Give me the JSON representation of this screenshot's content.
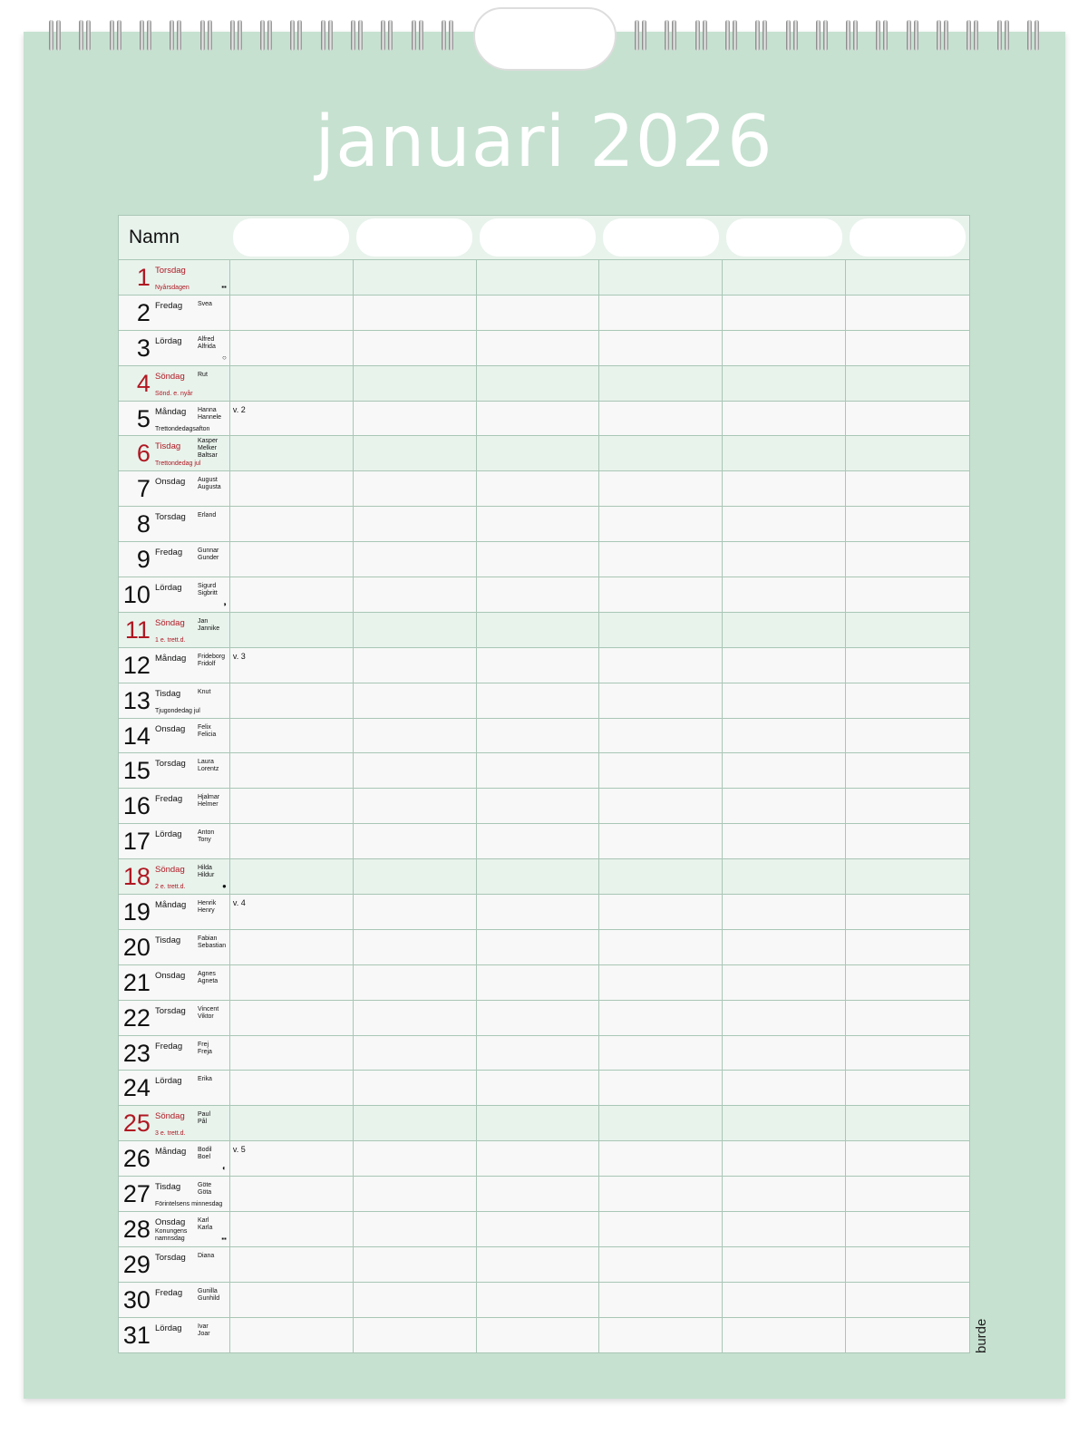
{
  "title": "januari 2026",
  "header": {
    "name_label": "Namn"
  },
  "brand": "burde",
  "colors": {
    "board": "#c6e1d0",
    "holiday_red": "#b01822",
    "sunday_row": "#e8f3ec"
  },
  "days": [
    {
      "n": "1",
      "wd": "Torsdag",
      "names": "",
      "hol": "Nyårsdagen",
      "red": true,
      "mark": "flag-icon"
    },
    {
      "n": "2",
      "wd": "Fredag",
      "names": "Svea"
    },
    {
      "n": "3",
      "wd": "Lördag",
      "names": "Alfred\nAlfrida",
      "mark": "full-moon-icon"
    },
    {
      "n": "4",
      "wd": "Söndag",
      "names": "Rut",
      "hol": "Sönd. e. nyår",
      "sun": true
    },
    {
      "n": "5",
      "wd": "Måndag",
      "names": "Hanna\nHannele",
      "hol": "Trettondedagsafton",
      "week": "v. 2"
    },
    {
      "n": "6",
      "wd": "Tisdag",
      "names": "Kasper\nMelker\nBaltsar",
      "hol": "Trettondedag jul",
      "sun": true
    },
    {
      "n": "7",
      "wd": "Onsdag",
      "names": "August\nAugusta"
    },
    {
      "n": "8",
      "wd": "Torsdag",
      "names": "Erland"
    },
    {
      "n": "9",
      "wd": "Fredag",
      "names": "Gunnar\nGunder"
    },
    {
      "n": "10",
      "wd": "Lördag",
      "names": "Sigurd\nSigbritt",
      "mark": "last-quarter-icon"
    },
    {
      "n": "11",
      "wd": "Söndag",
      "names": "Jan\nJannike",
      "hol": "1 e. trett.d.",
      "sun": true
    },
    {
      "n": "12",
      "wd": "Måndag",
      "names": "Frideborg\nFridolf",
      "week": "v. 3"
    },
    {
      "n": "13",
      "wd": "Tisdag",
      "names": "Knut",
      "hol": "Tjugondedag jul"
    },
    {
      "n": "14",
      "wd": "Onsdag",
      "names": "Felix\nFelicia"
    },
    {
      "n": "15",
      "wd": "Torsdag",
      "names": "Laura\nLorentz"
    },
    {
      "n": "16",
      "wd": "Fredag",
      "names": "Hjalmar\nHelmer"
    },
    {
      "n": "17",
      "wd": "Lördag",
      "names": "Anton\nTony"
    },
    {
      "n": "18",
      "wd": "Söndag",
      "names": "Hilda\nHildur",
      "hol": "2 e. trett.d.",
      "sun": true,
      "mark": "new-moon-icon"
    },
    {
      "n": "19",
      "wd": "Måndag",
      "names": "Henrik\nHenry",
      "week": "v. 4"
    },
    {
      "n": "20",
      "wd": "Tisdag",
      "names": "Fabian\nSebastian"
    },
    {
      "n": "21",
      "wd": "Onsdag",
      "names": "Agnes\nAgneta"
    },
    {
      "n": "22",
      "wd": "Torsdag",
      "names": "Vincent\nViktor"
    },
    {
      "n": "23",
      "wd": "Fredag",
      "names": "Frej\nFreja"
    },
    {
      "n": "24",
      "wd": "Lördag",
      "names": "Erika"
    },
    {
      "n": "25",
      "wd": "Söndag",
      "names": "Paul\nPål",
      "hol": "3 e. trett.d.",
      "sun": true
    },
    {
      "n": "26",
      "wd": "Måndag",
      "names": "Bodil\nBoel",
      "week": "v. 5",
      "mark": "first-quarter-icon"
    },
    {
      "n": "27",
      "wd": "Tisdag",
      "names": "Göte\nGöta",
      "hol": "Förintelsens minnesdag"
    },
    {
      "n": "28",
      "wd": "Onsdag",
      "names": "Karl\nKarla",
      "hol": "Konungens\nnamnsdag",
      "mark": "flag-icon"
    },
    {
      "n": "29",
      "wd": "Torsdag",
      "names": "Diana"
    },
    {
      "n": "30",
      "wd": "Fredag",
      "names": "Gunilla\nGunhild"
    },
    {
      "n": "31",
      "wd": "Lördag",
      "names": "Ivar\nJoar"
    }
  ]
}
